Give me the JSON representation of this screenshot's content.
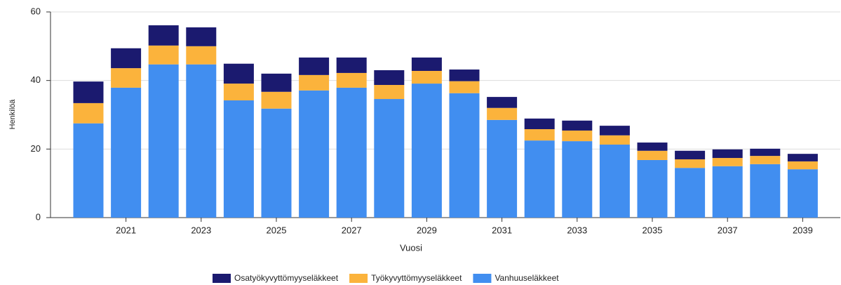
{
  "chart_data": {
    "type": "stacked_bar",
    "xlabel": "Vuosi",
    "ylabel": "Henkilöä",
    "categories": [
      null,
      "2021",
      null,
      "2023",
      null,
      "2025",
      null,
      "2027",
      null,
      "2029",
      null,
      "2031",
      null,
      "2033",
      null,
      "2035",
      null,
      "2037",
      null,
      "2039"
    ],
    "series": [
      {
        "name": "Vanhuuseläkkeet",
        "color": "#418ef0",
        "values": [
          27.5,
          37.9,
          44.7,
          44.7,
          34.2,
          31.8,
          37.1,
          37.9,
          34.6,
          39.1,
          36.3,
          28.5,
          22.5,
          22.3,
          21.3,
          16.8,
          14.5,
          15.0,
          15.6,
          14.1
        ]
      },
      {
        "name": "Työkyvyttömyyseläkkeet",
        "color": "#fbb33c",
        "values": [
          5.9,
          5.7,
          5.5,
          5.3,
          4.9,
          4.9,
          4.5,
          4.3,
          4.1,
          3.7,
          3.5,
          3.5,
          3.3,
          3.1,
          2.7,
          2.7,
          2.5,
          2.4,
          2.4,
          2.3
        ]
      },
      {
        "name": "Osatyökyvyttömyyseläkkeet",
        "color": "#1b1a6f",
        "values": [
          6.3,
          5.8,
          5.9,
          5.5,
          5.8,
          5.3,
          5.1,
          4.5,
          4.3,
          3.9,
          3.4,
          3.2,
          3.1,
          2.9,
          2.8,
          2.4,
          2.5,
          2.5,
          2.1,
          2.2
        ]
      }
    ],
    "ylim": [
      0,
      60
    ],
    "yticks": [
      0,
      20,
      40,
      60
    ],
    "grid": true,
    "legend": "bottom"
  }
}
